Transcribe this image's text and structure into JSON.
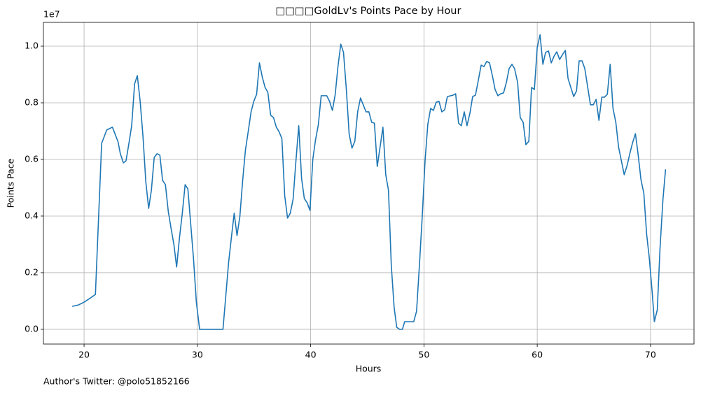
{
  "chart_data": {
    "type": "line",
    "title": "□□□□GoldLv's Points Pace by Hour",
    "xlabel": "Hours",
    "ylabel": "Points Pace",
    "y_offset_label": "1e7",
    "footnote": "Author's Twitter: @polo51852166",
    "color": "#1f77b4",
    "grid": true,
    "xlim": [
      16.41,
      73.84
    ],
    "ylim": [
      -520000,
      10840000
    ],
    "xticks": [
      20,
      30,
      40,
      50,
      60,
      70
    ],
    "yticks": [
      {
        "value": 0,
        "label": "0.0"
      },
      {
        "value": 2000000,
        "label": "0.2"
      },
      {
        "value": 4000000,
        "label": "0.4"
      },
      {
        "value": 6000000,
        "label": "0.6"
      },
      {
        "value": 8000000,
        "label": "0.8"
      },
      {
        "value": 10000000,
        "label": "1.0"
      }
    ],
    "x": [
      18.95,
      19.5,
      20.0,
      20.5,
      21.0,
      21.55,
      22.0,
      22.5,
      23.0,
      23.2,
      23.47,
      23.7,
      23.96,
      24.2,
      24.46,
      24.7,
      24.95,
      25.2,
      25.45,
      25.7,
      25.94,
      26.19,
      26.44,
      26.69,
      26.93,
      27.18,
      27.43,
      27.68,
      27.93,
      28.17,
      28.42,
      28.67,
      28.92,
      29.16,
      29.41,
      29.66,
      29.91,
      30.2,
      30.7,
      31.2,
      31.7,
      32.26,
      32.5,
      32.76,
      33.0,
      33.25,
      33.5,
      33.75,
      34.0,
      34.24,
      34.49,
      34.74,
      34.98,
      35.23,
      35.48,
      35.73,
      35.98,
      36.22,
      36.47,
      36.72,
      36.97,
      37.2,
      37.46,
      37.71,
      37.96,
      38.2,
      38.45,
      38.7,
      38.95,
      39.2,
      39.44,
      39.69,
      39.94,
      40.19,
      40.43,
      40.68,
      40.93,
      41.18,
      41.42,
      41.67,
      41.92,
      42.17,
      42.41,
      42.66,
      42.9,
      43.16,
      43.4,
      43.65,
      43.9,
      44.15,
      44.4,
      44.64,
      44.89,
      45.14,
      45.39,
      45.63,
      45.88,
      46.13,
      46.38,
      46.63,
      46.87,
      47.12,
      47.37,
      47.6,
      47.86,
      48.1,
      48.3,
      48.7,
      49.1,
      49.35,
      49.6,
      49.85,
      50.1,
      50.34,
      50.59,
      50.84,
      51.08,
      51.33,
      51.58,
      51.83,
      52.07,
      52.57,
      52.8,
      53.06,
      53.3,
      53.56,
      53.8,
      54.06,
      54.3,
      54.55,
      54.8,
      55.05,
      55.3,
      55.54,
      55.79,
      56.04,
      56.28,
      56.53,
      56.78,
      57.03,
      57.28,
      57.52,
      57.77,
      58.0,
      58.27,
      58.5,
      58.76,
      59.0,
      59.26,
      59.5,
      59.75,
      60.0,
      60.25,
      60.5,
      60.74,
      61.0,
      61.24,
      61.49,
      61.73,
      61.98,
      62.23,
      62.48,
      62.72,
      62.97,
      63.22,
      63.47,
      63.7,
      63.96,
      64.2,
      64.46,
      64.7,
      64.95,
      65.2,
      65.45,
      65.7,
      65.94,
      66.19,
      66.44,
      66.69,
      66.94,
      67.18,
      67.43,
      67.68,
      67.93,
      68.17,
      68.42,
      68.67,
      68.9,
      69.16,
      69.41,
      69.66,
      69.9,
      70.16,
      70.34,
      70.6,
      70.84,
      71.1,
      71.33
    ],
    "values": [
      810000,
      860000,
      960000,
      1090000,
      1230000,
      6570000,
      7040000,
      7140000,
      6620000,
      6200000,
      5880000,
      5950000,
      6570000,
      7190000,
      8670000,
      8960000,
      8050000,
      6810000,
      5210000,
      4270000,
      4910000,
      6070000,
      6200000,
      6150000,
      5260000,
      5110000,
      4170000,
      3560000,
      2990000,
      2200000,
      3230000,
      4100000,
      5110000,
      4960000,
      3730000,
      2490000,
      960000,
      0,
      0,
      0,
      0,
      0,
      1140000,
      2370000,
      3230000,
      4100000,
      3310000,
      3980000,
      5260000,
      6320000,
      6990000,
      7680000,
      8050000,
      8300000,
      9410000,
      8910000,
      8540000,
      8370000,
      7560000,
      7480000,
      7140000,
      6990000,
      6740000,
      4720000,
      3930000,
      4100000,
      4590000,
      5950000,
      7190000,
      5330000,
      4620000,
      4470000,
      4200000,
      6000000,
      6690000,
      7230000,
      8250000,
      8250000,
      8250000,
      8050000,
      7730000,
      8300000,
      9280000,
      10070000,
      9780000,
      8420000,
      6890000,
      6400000,
      6640000,
      7680000,
      8170000,
      7930000,
      7680000,
      7680000,
      7310000,
      7280000,
      5750000,
      6440000,
      7140000,
      5460000,
      4910000,
      2250000,
      770000,
      70000,
      0,
      0,
      270000,
      270000,
      270000,
      640000,
      2250000,
      3980000,
      5950000,
      7230000,
      7800000,
      7730000,
      8020000,
      8050000,
      7680000,
      7750000,
      8220000,
      8270000,
      8320000,
      7280000,
      7190000,
      7680000,
      7190000,
      7630000,
      8220000,
      8270000,
      8790000,
      9330000,
      9280000,
      9460000,
      9410000,
      8960000,
      8470000,
      8250000,
      8320000,
      8350000,
      8720000,
      9210000,
      9360000,
      9210000,
      8720000,
      7480000,
      7310000,
      6520000,
      6640000,
      8540000,
      8470000,
      9950000,
      10400000,
      9360000,
      9780000,
      9830000,
      9410000,
      9650000,
      9800000,
      9530000,
      9700000,
      9850000,
      8860000,
      8540000,
      8220000,
      8420000,
      9480000,
      9480000,
      9210000,
      8540000,
      7930000,
      7930000,
      8120000,
      7380000,
      8200000,
      8200000,
      8300000,
      9360000,
      7800000,
      7310000,
      6440000,
      5950000,
      5460000,
      5780000,
      6200000,
      6590000,
      6910000,
      6200000,
      5280000,
      4810000,
      3360000,
      2490000,
      1260000,
      270000,
      690000,
      2860000,
      4590000,
      5650000
    ]
  }
}
